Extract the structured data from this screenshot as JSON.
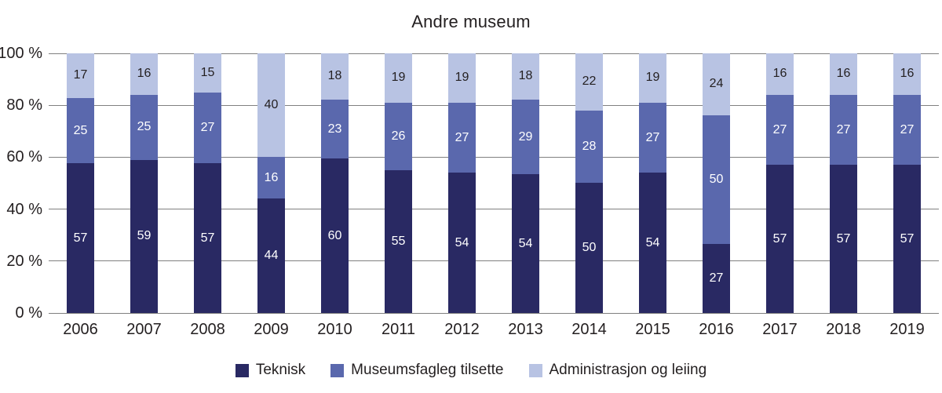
{
  "title": "Andre museum",
  "colors": {
    "gridline": "#808080",
    "text": "#231f20",
    "background": "#ffffff",
    "label_on_dark": "#ffffff",
    "label_on_light": "#231f20"
  },
  "y_axis": {
    "ticks": [
      "100 %",
      "80 %",
      "60 %",
      "40 %",
      "20 %",
      "0 %"
    ]
  },
  "chart_data": {
    "type": "bar",
    "stacked": true,
    "normalized_to_100": true,
    "title": "Andre museum",
    "categories": [
      "2006",
      "2007",
      "2008",
      "2009",
      "2010",
      "2011",
      "2012",
      "2013",
      "2014",
      "2015",
      "2016",
      "2017",
      "2018",
      "2019"
    ],
    "series": [
      {
        "name": "Teknisk",
        "color": "#292963",
        "values": [
          57,
          59,
          57,
          44,
          60,
          55,
          54,
          54,
          50,
          54,
          27,
          57,
          57,
          57
        ]
      },
      {
        "name": "Museumsfagleg tilsette",
        "color": "#5a68ad",
        "values": [
          25,
          25,
          27,
          16,
          23,
          26,
          27,
          29,
          28,
          27,
          50,
          27,
          27,
          27
        ]
      },
      {
        "name": "Administrasjon og leiing",
        "color": "#b8c3e3",
        "values": [
          17,
          16,
          15,
          40,
          18,
          19,
          19,
          18,
          22,
          19,
          24,
          16,
          16,
          16
        ]
      }
    ],
    "ylim": [
      0,
      100
    ],
    "y_ticks": [
      "100 %",
      "80 %",
      "60 %",
      "40 %",
      "20 %",
      "0 %"
    ],
    "grid": true,
    "value_labels": true,
    "legend_position": "bottom"
  }
}
